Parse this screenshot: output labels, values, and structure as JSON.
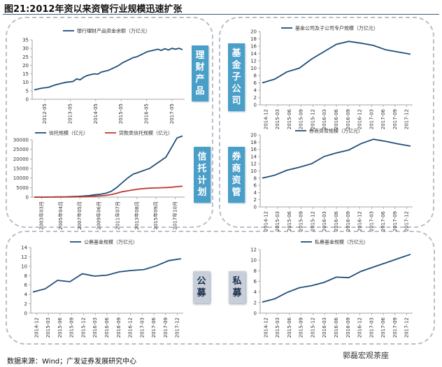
{
  "title": "图21:2012年资以来资管行业规模迅速扩张",
  "source": "数据来源：Wind；广发证券发展研究中心",
  "watermark": "郭磊宏观茶座",
  "tags": {
    "wealth": "理财产品",
    "trust": "信托计划",
    "fund_sub": "基金子公司",
    "broker": "券商资管",
    "public": "公募",
    "private": "私募"
  },
  "colors": {
    "primary": "#1f4e79",
    "secondary": "#c0392b",
    "tag_blue": "#4a9fc8",
    "tag_grey": "#c9cfd8"
  },
  "chart_data": [
    {
      "id": "wealth",
      "type": "line",
      "ylim": [
        0,
        35
      ],
      "yticks": [
        "0",
        "5",
        "10",
        "15",
        "20",
        "25",
        "30",
        "35"
      ],
      "xticks": [
        "2012-05",
        "2013-05",
        "2014-05",
        "2015-05",
        "2016-05",
        "2017-05"
      ],
      "series": [
        {
          "name": "银行理财产品资金余额（万亿元）",
          "values": [
            5.5,
            6.0,
            6.5,
            6.8,
            7.0,
            7.8,
            8.5,
            9.0,
            9.5,
            10.0,
            10.2,
            10.5,
            12.0,
            11.5,
            13.0,
            14.0,
            14.5,
            15.0,
            14.8,
            16.0,
            16.5,
            17.0,
            18.0,
            19.0,
            20.0,
            21.5,
            22.5,
            23.5,
            24.5,
            25.0,
            26.0,
            27.0,
            28.0,
            28.5,
            29.0,
            29.5,
            28.8,
            29.8,
            29.0,
            30.0,
            29.5,
            30.0,
            29.2
          ]
        }
      ]
    },
    {
      "id": "trust",
      "type": "line",
      "ylim": [
        0,
        30000
      ],
      "yticks": [
        "0",
        "5000",
        "10000",
        "15000",
        "20000",
        "25000",
        "30000"
      ],
      "xticks": [
        "2003年03月",
        "2005年04月",
        "2007年05月",
        "2009年06月",
        "2011年07月",
        "2013年08月",
        "2015年09月",
        "2017年10月"
      ],
      "series": [
        {
          "name": "信托规模（亿元）",
          "values": [
            0,
            0,
            20,
            50,
            100,
            150,
            200,
            300,
            400,
            600,
            800,
            1200,
            1500,
            2000,
            3000,
            5000,
            7500,
            10000,
            12000,
            13000,
            14000,
            15000,
            17000,
            19000,
            21000,
            26000,
            31000,
            32000
          ]
        },
        {
          "name": "贷款类信托规模（亿元）",
          "values": [
            0,
            0,
            10,
            20,
            40,
            60,
            80,
            120,
            180,
            250,
            350,
            500,
            700,
            900,
            1300,
            2000,
            2800,
            3300,
            3800,
            4200,
            4500,
            4700,
            4800,
            4900,
            5000,
            5200,
            5500,
            5700
          ]
        }
      ]
    },
    {
      "id": "fund_sub",
      "type": "line",
      "ylim": [
        0,
        20
      ],
      "yticks": [
        "0",
        "2",
        "4",
        "6",
        "8",
        "10",
        "12",
        "14",
        "16",
        "18",
        "20"
      ],
      "xticks": [
        "2014-12",
        "2015-03",
        "2015-06",
        "2015-09",
        "2015-12",
        "2016-03",
        "2016-06",
        "2016-09",
        "2016-12",
        "2017-03",
        "2017-06",
        "2017-09",
        "2017-12"
      ],
      "series": [
        {
          "name": "基金公司及子公司专户规模（万亿元）",
          "values": [
            6.0,
            7.0,
            9.0,
            10.0,
            12.5,
            14.5,
            16.5,
            17.3,
            16.8,
            16.2,
            15.0,
            14.4,
            13.8
          ]
        }
      ]
    },
    {
      "id": "broker",
      "type": "line",
      "ylim": [
        0,
        20
      ],
      "yticks": [
        "0",
        "2",
        "4",
        "6",
        "8",
        "10",
        "12",
        "14",
        "16",
        "18",
        "20"
      ],
      "xticks": [
        "2014-12",
        "2015-03",
        "2015-06",
        "2015-09",
        "2015-12",
        "2016-03",
        "2016-06",
        "2016-09",
        "2016-12",
        "2017-03",
        "2017-06",
        "2017-09",
        "2017-12"
      ],
      "series": [
        {
          "name": "券商资管规模（万亿元）",
          "values": [
            8.0,
            8.8,
            10.2,
            11.0,
            12.0,
            14.0,
            15.0,
            15.8,
            17.6,
            18.8,
            18.2,
            17.5,
            16.9
          ]
        }
      ]
    },
    {
      "id": "public",
      "type": "line",
      "ylim": [
        0,
        14
      ],
      "yticks": [
        "0",
        "2",
        "4",
        "6",
        "8",
        "10",
        "12",
        "14"
      ],
      "xticks": [
        "2014-12",
        "2015-03",
        "2015-06",
        "2015-09",
        "2015-12",
        "2016-03",
        "2016-06",
        "2016-09",
        "2016-12",
        "2017-03",
        "2017-06",
        "2017-09",
        "2017-12"
      ],
      "series": [
        {
          "name": "公募基金规模（万亿元）",
          "values": [
            4.5,
            5.2,
            7.0,
            6.7,
            8.4,
            7.9,
            8.1,
            8.8,
            9.1,
            9.3,
            10.1,
            11.2,
            11.6
          ]
        }
      ]
    },
    {
      "id": "private",
      "type": "line",
      "ylim": [
        0,
        12
      ],
      "yticks": [
        "0",
        "2",
        "4",
        "6",
        "8",
        "10",
        "12"
      ],
      "xticks": [
        "2014-12",
        "2015-03",
        "2015-06",
        "2015-09",
        "2015-12",
        "2016-03",
        "2016-06",
        "2016-09",
        "2016-12",
        "2017-03",
        "2017-06",
        "2017-09",
        "2017-12"
      ],
      "series": [
        {
          "name": "私募基金规模（万亿元）",
          "values": [
            2.1,
            2.7,
            3.9,
            4.8,
            5.2,
            5.8,
            6.8,
            6.7,
            7.9,
            8.7,
            9.5,
            10.3,
            11.1
          ]
        }
      ]
    }
  ]
}
